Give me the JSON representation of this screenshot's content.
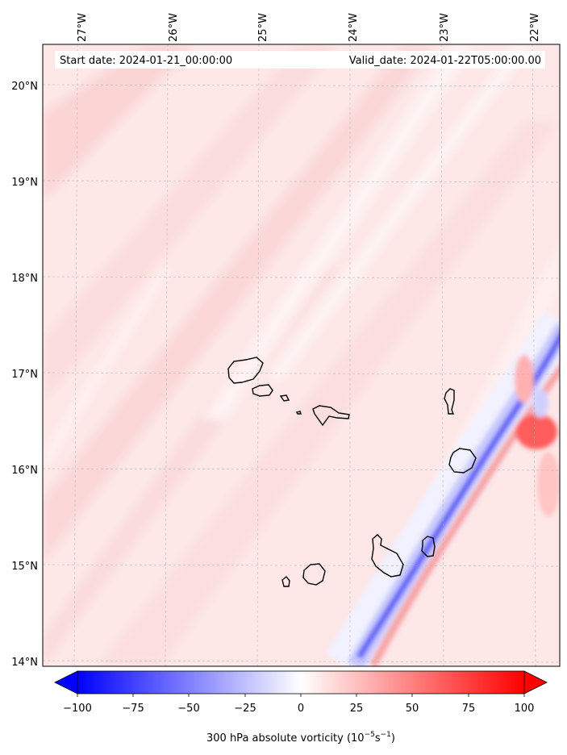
{
  "info": {
    "start_date": "Start date: 2024-01-21_00:00:00",
    "valid_date": "Valid_date: 2024-01-22T05:00:00.00"
  },
  "axes": {
    "lon_ticks": [
      "27°W",
      "26°W",
      "25°W",
      "24°W",
      "23°W",
      "22°W"
    ],
    "lat_ticks": [
      "20°N",
      "19°N",
      "18°N",
      "17°N",
      "16°N",
      "15°N",
      "14°N"
    ],
    "lon_range": [
      -27.35,
      -21.62
    ],
    "lat_range": [
      13.96,
      20.43
    ]
  },
  "colorbar": {
    "ticks": [
      "−100",
      "−75",
      "−50",
      "−25",
      "0",
      "25",
      "50",
      "75",
      "100"
    ],
    "range": [
      -100,
      100
    ],
    "extend": "both",
    "label_main": "300 hPa absolute vorticity (10",
    "label_exp1": "−5",
    "label_mid": "s",
    "label_exp2": "−1",
    "label_end": ")",
    "colors": {
      "negative": "#0000ff",
      "zero": "#ffffff",
      "positive": "#ff0000"
    }
  },
  "islands": [
    "santo-antao",
    "sao-vicente",
    "santa-luzia",
    "branco",
    "sao-nicolau",
    "sal",
    "boa-vista",
    "maio",
    "santiago",
    "fogo",
    "brava"
  ]
}
